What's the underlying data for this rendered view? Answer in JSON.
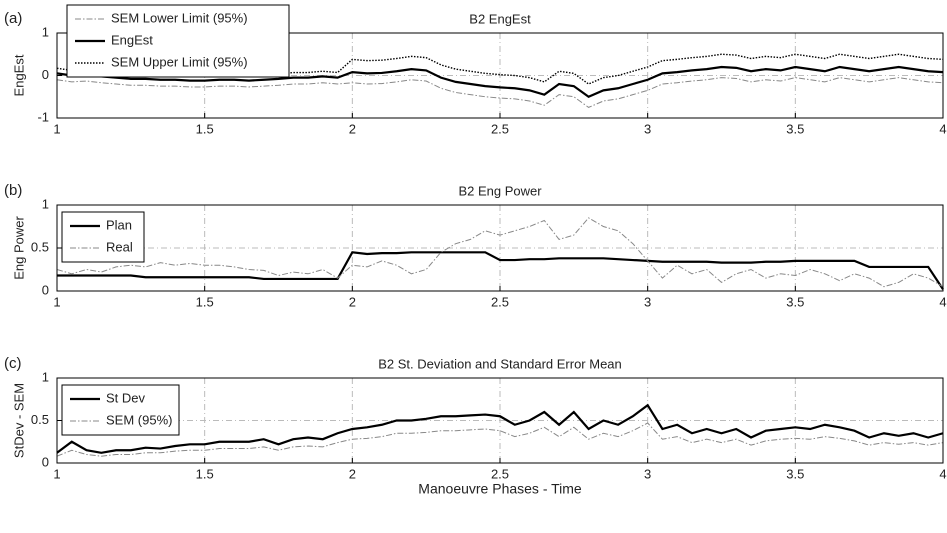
{
  "chart_data": [
    {
      "type": "line",
      "panel_label": "(a)",
      "title": "B2 EngEst",
      "ylabel": "EngEst",
      "x": [
        1,
        1.05,
        1.1,
        1.15,
        1.2,
        1.25,
        1.3,
        1.35,
        1.4,
        1.45,
        1.5,
        1.55,
        1.6,
        1.65,
        1.7,
        1.75,
        1.8,
        1.85,
        1.9,
        1.95,
        2,
        2.05,
        2.1,
        2.15,
        2.2,
        2.25,
        2.3,
        2.35,
        2.4,
        2.45,
        2.5,
        2.55,
        2.6,
        2.65,
        2.7,
        2.75,
        2.8,
        2.85,
        2.9,
        2.95,
        3,
        3.05,
        3.1,
        3.15,
        3.2,
        3.25,
        3.3,
        3.35,
        3.4,
        3.45,
        3.5,
        3.55,
        3.6,
        3.65,
        3.7,
        3.75,
        3.8,
        3.85,
        3.9,
        3.95,
        4
      ],
      "series": [
        {
          "name": "SEM Lower Limit (95%)",
          "color": "#888888",
          "style": "dashdot",
          "values": [
            -0.1,
            -0.15,
            -0.13,
            -0.17,
            -0.2,
            -0.23,
            -0.23,
            -0.25,
            -0.25,
            -0.27,
            -0.27,
            -0.25,
            -0.25,
            -0.27,
            -0.25,
            -0.23,
            -0.2,
            -0.2,
            -0.17,
            -0.2,
            -0.17,
            -0.2,
            -0.19,
            -0.15,
            -0.1,
            -0.13,
            -0.3,
            -0.4,
            -0.45,
            -0.5,
            -0.53,
            -0.55,
            -0.6,
            -0.7,
            -0.45,
            -0.5,
            -0.75,
            -0.6,
            -0.55,
            -0.45,
            -0.35,
            -0.2,
            -0.17,
            -0.13,
            -0.1,
            -0.05,
            -0.07,
            -0.15,
            -0.1,
            -0.13,
            -0.05,
            -0.1,
            -0.15,
            -0.05,
            -0.1,
            -0.15,
            -0.1,
            -0.05,
            -0.1,
            -0.15,
            -0.17
          ]
        },
        {
          "name": "EngEst",
          "color": "#000000",
          "style": "solid",
          "values": [
            0.05,
            0,
            0.02,
            -0.02,
            -0.05,
            -0.08,
            -0.08,
            -0.1,
            -0.1,
            -0.12,
            -0.12,
            -0.1,
            -0.1,
            -0.12,
            -0.1,
            -0.08,
            -0.05,
            -0.05,
            -0.02,
            -0.05,
            0.08,
            0.05,
            0.06,
            0.1,
            0.15,
            0.12,
            -0.05,
            -0.15,
            -0.2,
            -0.25,
            -0.28,
            -0.3,
            -0.35,
            -0.45,
            -0.2,
            -0.25,
            -0.5,
            -0.35,
            -0.3,
            -0.2,
            -0.1,
            0.05,
            0.08,
            0.12,
            0.15,
            0.2,
            0.18,
            0.1,
            0.15,
            0.12,
            0.2,
            0.15,
            0.1,
            0.2,
            0.15,
            0.1,
            0.15,
            0.2,
            0.15,
            0.1,
            0.08
          ]
        },
        {
          "name": "SEM Upper Limit (95%)",
          "color": "#000000",
          "style": "dotted",
          "values": [
            0.17,
            0.12,
            0.14,
            0.1,
            0.07,
            0.04,
            0.04,
            0.02,
            0.02,
            0,
            0,
            0.02,
            0.02,
            0,
            0.02,
            0.04,
            0.07,
            0.07,
            0.1,
            0.07,
            0.38,
            0.35,
            0.36,
            0.4,
            0.45,
            0.42,
            0.25,
            0.15,
            0.1,
            0.05,
            0.02,
            0,
            -0.05,
            -0.15,
            0.1,
            0.05,
            -0.2,
            -0.05,
            0,
            0.1,
            0.2,
            0.35,
            0.38,
            0.42,
            0.45,
            0.5,
            0.48,
            0.4,
            0.45,
            0.42,
            0.5,
            0.45,
            0.4,
            0.5,
            0.45,
            0.4,
            0.45,
            0.5,
            0.45,
            0.4,
            0.38
          ]
        }
      ],
      "xlim": [
        1,
        4
      ],
      "xticks": [
        1,
        1.5,
        2,
        2.5,
        3,
        3.5,
        4
      ],
      "ylim": [
        -1,
        1
      ],
      "yticks": [
        -1,
        0,
        1
      ],
      "grid": true,
      "legend": "upper left"
    },
    {
      "type": "line",
      "panel_label": "(b)",
      "title": "B2 Eng Power",
      "ylabel": "Eng Power",
      "x": [
        1,
        1.05,
        1.1,
        1.15,
        1.2,
        1.25,
        1.3,
        1.35,
        1.4,
        1.45,
        1.5,
        1.55,
        1.6,
        1.65,
        1.7,
        1.75,
        1.8,
        1.85,
        1.9,
        1.95,
        2,
        2.05,
        2.1,
        2.15,
        2.2,
        2.25,
        2.3,
        2.35,
        2.4,
        2.45,
        2.5,
        2.55,
        2.6,
        2.65,
        2.7,
        2.75,
        2.8,
        2.85,
        2.9,
        2.95,
        3,
        3.05,
        3.1,
        3.15,
        3.2,
        3.25,
        3.3,
        3.35,
        3.4,
        3.45,
        3.5,
        3.55,
        3.6,
        3.65,
        3.7,
        3.75,
        3.8,
        3.85,
        3.9,
        3.95,
        4
      ],
      "series": [
        {
          "name": "Plan",
          "color": "#000000",
          "style": "solid",
          "values": [
            0.18,
            0.18,
            0.18,
            0.18,
            0.18,
            0.18,
            0.16,
            0.16,
            0.16,
            0.16,
            0.16,
            0.16,
            0.16,
            0.16,
            0.14,
            0.14,
            0.14,
            0.14,
            0.14,
            0.14,
            0.45,
            0.43,
            0.44,
            0.44,
            0.45,
            0.45,
            0.45,
            0.45,
            0.45,
            0.45,
            0.36,
            0.36,
            0.37,
            0.37,
            0.38,
            0.38,
            0.38,
            0.38,
            0.37,
            0.36,
            0.35,
            0.34,
            0.34,
            0.34,
            0.34,
            0.33,
            0.33,
            0.33,
            0.34,
            0.34,
            0.35,
            0.35,
            0.35,
            0.35,
            0.35,
            0.28,
            0.28,
            0.28,
            0.28,
            0.28,
            0.02
          ]
        },
        {
          "name": "Real",
          "color": "#888888",
          "style": "dashdot",
          "values": [
            0.25,
            0.2,
            0.25,
            0.22,
            0.28,
            0.3,
            0.28,
            0.33,
            0.3,
            0.32,
            0.3,
            0.3,
            0.28,
            0.25,
            0.24,
            0.18,
            0.22,
            0.2,
            0.25,
            0.15,
            0.3,
            0.28,
            0.35,
            0.3,
            0.2,
            0.25,
            0.45,
            0.55,
            0.6,
            0.7,
            0.65,
            0.7,
            0.75,
            0.82,
            0.6,
            0.65,
            0.85,
            0.75,
            0.7,
            0.55,
            0.35,
            0.15,
            0.3,
            0.2,
            0.25,
            0.1,
            0.2,
            0.25,
            0.15,
            0.2,
            0.18,
            0.25,
            0.2,
            0.12,
            0.2,
            0.15,
            0.05,
            0.1,
            0.2,
            0.15,
            0.05
          ]
        }
      ],
      "xlim": [
        1,
        4
      ],
      "xticks": [
        1,
        1.5,
        2,
        2.5,
        3,
        3.5,
        4
      ],
      "ylim": [
        0,
        1
      ],
      "yticks": [
        0,
        0.5,
        1
      ],
      "grid": true,
      "legend": "upper left"
    },
    {
      "type": "line",
      "panel_label": "(c)",
      "title": "B2 St. Deviation and Standard Error Mean",
      "ylabel": "StDev - SEM",
      "xlabel": "Manoeuvre Phases - Time",
      "x": [
        1,
        1.05,
        1.1,
        1.15,
        1.2,
        1.25,
        1.3,
        1.35,
        1.4,
        1.45,
        1.5,
        1.55,
        1.6,
        1.65,
        1.7,
        1.75,
        1.8,
        1.85,
        1.9,
        1.95,
        2,
        2.05,
        2.1,
        2.15,
        2.2,
        2.25,
        2.3,
        2.35,
        2.4,
        2.45,
        2.5,
        2.55,
        2.6,
        2.65,
        2.7,
        2.75,
        2.8,
        2.85,
        2.9,
        2.95,
        3,
        3.05,
        3.1,
        3.15,
        3.2,
        3.25,
        3.3,
        3.35,
        3.4,
        3.45,
        3.5,
        3.55,
        3.6,
        3.65,
        3.7,
        3.75,
        3.8,
        3.85,
        3.9,
        3.95,
        4
      ],
      "series": [
        {
          "name": "St Dev",
          "color": "#000000",
          "style": "solid",
          "values": [
            0.12,
            0.25,
            0.15,
            0.12,
            0.15,
            0.15,
            0.18,
            0.17,
            0.2,
            0.22,
            0.22,
            0.25,
            0.25,
            0.25,
            0.28,
            0.22,
            0.28,
            0.3,
            0.28,
            0.35,
            0.4,
            0.42,
            0.45,
            0.5,
            0.5,
            0.52,
            0.55,
            0.55,
            0.56,
            0.57,
            0.55,
            0.45,
            0.5,
            0.6,
            0.45,
            0.6,
            0.4,
            0.5,
            0.45,
            0.55,
            0.68,
            0.4,
            0.45,
            0.35,
            0.4,
            0.35,
            0.4,
            0.3,
            0.38,
            0.4,
            0.42,
            0.4,
            0.45,
            0.42,
            0.38,
            0.3,
            0.35,
            0.32,
            0.35,
            0.3,
            0.35
          ]
        },
        {
          "name": "SEM (95%)",
          "color": "#888888",
          "style": "dashdot",
          "values": [
            0.08,
            0.15,
            0.1,
            0.08,
            0.1,
            0.1,
            0.12,
            0.12,
            0.14,
            0.15,
            0.15,
            0.17,
            0.17,
            0.17,
            0.19,
            0.15,
            0.19,
            0.2,
            0.19,
            0.24,
            0.28,
            0.29,
            0.31,
            0.35,
            0.35,
            0.36,
            0.38,
            0.38,
            0.39,
            0.4,
            0.38,
            0.31,
            0.35,
            0.42,
            0.31,
            0.42,
            0.28,
            0.35,
            0.31,
            0.38,
            0.47,
            0.28,
            0.31,
            0.24,
            0.28,
            0.24,
            0.28,
            0.21,
            0.26,
            0.28,
            0.29,
            0.28,
            0.31,
            0.29,
            0.26,
            0.21,
            0.24,
            0.22,
            0.24,
            0.21,
            0.24
          ]
        }
      ],
      "xlim": [
        1,
        4
      ],
      "xticks": [
        1,
        1.5,
        2,
        2.5,
        3,
        3.5,
        4
      ],
      "ylim": [
        0,
        1
      ],
      "yticks": [
        0,
        0.5,
        1
      ],
      "grid": true,
      "legend": "upper left"
    }
  ]
}
